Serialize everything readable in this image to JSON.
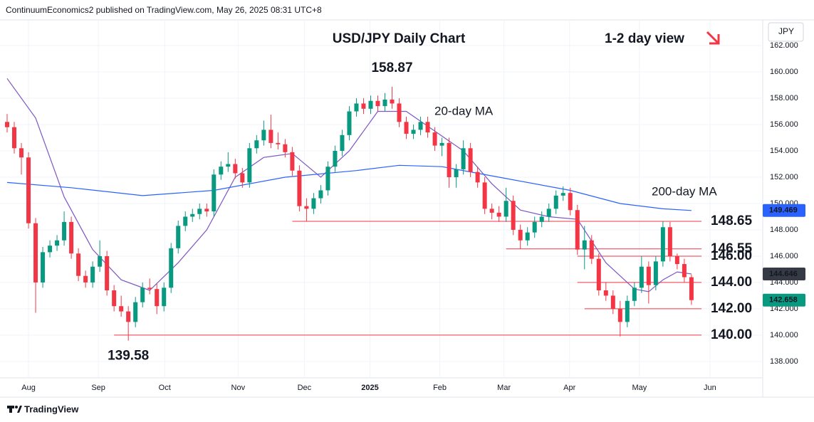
{
  "header": "ContinuumEconomics2 published on TradingView.com, May 26, 2025 08:31 UTC+8",
  "footer": "TradingView",
  "chart_data": {
    "type": "candlestick",
    "title": "USD/JPY Daily Chart",
    "subtitle": "1-2 day view",
    "currency": "JPY",
    "up_color": "#089981",
    "down_color": "#f23645",
    "grid": true,
    "xlim": [
      -1,
      106
    ],
    "xticks": [
      {
        "value": 3,
        "label": "Aug"
      },
      {
        "value": 12.8,
        "label": "Sep"
      },
      {
        "value": 22.1,
        "label": "Oct"
      },
      {
        "value": 32.4,
        "label": "Nov"
      },
      {
        "value": 41.7,
        "label": "Dec"
      },
      {
        "value": 50.9,
        "label": "2025"
      },
      {
        "value": 60.7,
        "label": "Feb"
      },
      {
        "value": 69.7,
        "label": "Mar"
      },
      {
        "value": 78.9,
        "label": "Apr"
      },
      {
        "value": 88.7,
        "label": "May"
      },
      {
        "value": 98.6,
        "label": "Jun"
      }
    ],
    "ylim": [
      136.75,
      163.95
    ],
    "yticks": [
      {
        "value": 138,
        "label": "138.000"
      },
      {
        "value": 140,
        "label": "140.000"
      },
      {
        "value": 142,
        "label": "142.000"
      },
      {
        "value": 144,
        "label": "144.000"
      },
      {
        "value": 146,
        "label": "146.000"
      },
      {
        "value": 148,
        "label": "148.000"
      },
      {
        "value": 150,
        "label": "150.000"
      },
      {
        "value": 152,
        "label": "152.000"
      },
      {
        "value": 154,
        "label": "154.000"
      },
      {
        "value": 156,
        "label": "156.000"
      },
      {
        "value": 158,
        "label": "158.000"
      },
      {
        "value": 160,
        "label": "160.000"
      },
      {
        "value": 162,
        "label": "162.000"
      }
    ],
    "ohlc": [
      [
        156.2,
        156.8,
        155.4,
        155.8
      ],
      [
        155.8,
        156.2,
        153.8,
        154.2
      ],
      [
        154.2,
        154.6,
        152.2,
        153.5
      ],
      [
        153.5,
        153.9,
        148.1,
        148.5
      ],
      [
        148.5,
        148.9,
        141.7,
        144.0
      ],
      [
        144.0,
        146.7,
        143.6,
        146.3
      ],
      [
        146.3,
        147.2,
        145.9,
        146.8
      ],
      [
        146.8,
        147.6,
        146.4,
        147.2
      ],
      [
        147.2,
        149.4,
        146.8,
        148.6
      ],
      [
        148.6,
        149.0,
        145.8,
        146.2
      ],
      [
        146.2,
        146.6,
        144.1,
        144.5
      ],
      [
        144.5,
        144.9,
        143.6,
        144.0
      ],
      [
        144.0,
        145.6,
        143.6,
        145.2
      ],
      [
        145.2,
        147.2,
        144.8,
        146.0
      ],
      [
        146.0,
        146.4,
        143.0,
        143.4
      ],
      [
        143.4,
        143.8,
        141.8,
        142.2
      ],
      [
        142.2,
        143.0,
        141.4,
        141.8
      ],
      [
        141.8,
        142.2,
        139.58,
        141.0
      ],
      [
        141.0,
        142.9,
        140.6,
        142.5
      ],
      [
        142.5,
        144.0,
        142.1,
        143.6
      ],
      [
        143.6,
        144.3,
        143.1,
        143.5
      ],
      [
        143.5,
        143.9,
        141.6,
        142.2
      ],
      [
        142.2,
        144.0,
        141.8,
        143.6
      ],
      [
        143.6,
        147.0,
        143.2,
        146.6
      ],
      [
        146.6,
        148.7,
        146.2,
        148.3
      ],
      [
        148.3,
        149.4,
        147.9,
        149.0
      ],
      [
        149.0,
        149.6,
        148.6,
        149.2
      ],
      [
        149.2,
        150.0,
        148.8,
        149.6
      ],
      [
        149.6,
        150.0,
        149.0,
        149.4
      ],
      [
        149.4,
        152.6,
        149.0,
        152.2
      ],
      [
        152.2,
        153.2,
        151.8,
        152.8
      ],
      [
        152.8,
        153.9,
        152.4,
        153.0
      ],
      [
        153.0,
        153.4,
        151.9,
        152.3
      ],
      [
        152.3,
        152.7,
        151.2,
        151.6
      ],
      [
        151.6,
        154.6,
        151.2,
        154.2
      ],
      [
        154.2,
        155.2,
        153.8,
        154.8
      ],
      [
        154.8,
        156.3,
        154.4,
        155.6
      ],
      [
        155.6,
        156.75,
        154.2,
        154.6
      ],
      [
        154.6,
        155.4,
        154.1,
        154.5
      ],
      [
        154.5,
        154.9,
        153.5,
        153.9
      ],
      [
        153.9,
        154.3,
        152.1,
        152.5
      ],
      [
        152.5,
        152.9,
        149.4,
        149.8
      ],
      [
        149.8,
        150.4,
        148.65,
        149.6
      ],
      [
        149.6,
        150.8,
        149.2,
        150.4
      ],
      [
        150.4,
        151.4,
        150.0,
        151.0
      ],
      [
        151.0,
        153.2,
        150.6,
        152.8
      ],
      [
        152.8,
        154.4,
        152.4,
        154.0
      ],
      [
        154.0,
        155.6,
        153.6,
        155.2
      ],
      [
        155.2,
        157.4,
        154.8,
        157.0
      ],
      [
        157.0,
        158.0,
        156.6,
        157.6
      ],
      [
        157.6,
        158.0,
        156.8,
        157.2
      ],
      [
        157.2,
        158.2,
        156.8,
        157.8
      ],
      [
        157.8,
        158.2,
        157.0,
        157.4
      ],
      [
        157.4,
        158.4,
        157.0,
        157.9
      ],
      [
        157.9,
        158.87,
        157.2,
        157.6
      ],
      [
        157.6,
        158.0,
        155.8,
        156.2
      ],
      [
        156.2,
        156.6,
        154.9,
        155.3
      ],
      [
        155.3,
        156.0,
        154.9,
        155.6
      ],
      [
        155.6,
        156.6,
        155.2,
        156.2
      ],
      [
        156.2,
        156.6,
        155.0,
        155.4
      ],
      [
        155.4,
        155.8,
        154.0,
        154.4
      ],
      [
        154.4,
        155.0,
        153.6,
        154.6
      ],
      [
        154.6,
        155.0,
        151.2,
        152.0
      ],
      [
        152.0,
        153.0,
        151.2,
        152.6
      ],
      [
        152.6,
        154.8,
        152.2,
        154.2
      ],
      [
        154.2,
        154.6,
        152.0,
        152.4
      ],
      [
        152.4,
        152.8,
        151.2,
        151.6
      ],
      [
        151.6,
        152.0,
        149.2,
        149.6
      ],
      [
        149.6,
        150.0,
        148.8,
        149.3
      ],
      [
        149.3,
        149.8,
        148.6,
        149.0
      ],
      [
        149.0,
        151.2,
        148.6,
        150.2
      ],
      [
        150.2,
        150.6,
        147.6,
        148.0
      ],
      [
        148.0,
        148.4,
        146.55,
        147.2
      ],
      [
        147.2,
        148.2,
        146.8,
        147.8
      ],
      [
        147.8,
        149.0,
        147.4,
        148.6
      ],
      [
        148.6,
        149.4,
        148.2,
        149.0
      ],
      [
        149.0,
        150.0,
        148.6,
        149.6
      ],
      [
        149.6,
        151.0,
        149.2,
        150.6
      ],
      [
        150.6,
        151.3,
        150.2,
        150.8
      ],
      [
        150.8,
        151.2,
        149.1,
        149.5
      ],
      [
        149.5,
        149.9,
        146.1,
        146.5
      ],
      [
        146.5,
        148.3,
        145.0,
        147.2
      ],
      [
        147.2,
        147.6,
        145.4,
        145.8
      ],
      [
        145.8,
        146.2,
        143.0,
        143.4
      ],
      [
        143.4,
        144.0,
        142.6,
        143.0
      ],
      [
        143.0,
        143.4,
        141.6,
        142.0
      ],
      [
        142.0,
        142.6,
        139.9,
        141.0
      ],
      [
        141.0,
        143.0,
        140.6,
        142.6
      ],
      [
        142.6,
        144.0,
        142.2,
        143.6
      ],
      [
        143.6,
        146.0,
        143.2,
        145.2
      ],
      [
        145.2,
        145.6,
        142.4,
        143.8
      ],
      [
        143.8,
        146.0,
        143.4,
        145.6
      ],
      [
        145.6,
        148.65,
        145.2,
        148.2
      ],
      [
        148.2,
        148.6,
        145.6,
        146.0
      ],
      [
        146.0,
        146.2,
        145.0,
        145.4
      ],
      [
        145.4,
        145.8,
        144.0,
        144.4
      ],
      [
        144.4,
        144.6,
        142.3,
        142.658
      ]
    ],
    "series": [
      {
        "name": "20-day MA",
        "color": "#7e57c2",
        "x": [
          0,
          4,
          8,
          12,
          16,
          20,
          24,
          28,
          32,
          36,
          40,
          44,
          48,
          52,
          56,
          60,
          64,
          68,
          72,
          76,
          80,
          84,
          88,
          90,
          92,
          94,
          96
        ],
        "values": [
          159.5,
          156.5,
          150.5,
          146.5,
          144.2,
          143.4,
          145.5,
          148.0,
          152.0,
          153.5,
          153.8,
          152.0,
          154.0,
          157.0,
          157.0,
          155.5,
          154.0,
          151.5,
          149.5,
          149.0,
          148.8,
          145.5,
          143.5,
          143.3,
          144.2,
          144.8,
          144.646
        ]
      },
      {
        "name": "200-day MA",
        "color": "#2962ff",
        "x": [
          0,
          9,
          19,
          29,
          39,
          49,
          55,
          61,
          69,
          79,
          86,
          92,
          96
        ],
        "values": [
          151.6,
          151.2,
          150.6,
          151.0,
          152.0,
          152.5,
          152.9,
          152.8,
          152.0,
          151.0,
          150.0,
          149.6,
          149.469
        ]
      }
    ],
    "level_color": "#f23645",
    "levels": [
      {
        "value": 148.65,
        "from": 40
      },
      {
        "value": 146.55,
        "from": 70
      },
      {
        "value": 146,
        "label": "146.00",
        "from": 80
      },
      {
        "value": 144,
        "label": "144.00",
        "from": 80
      },
      {
        "value": 142,
        "label": "142.00",
        "from": 81
      },
      {
        "value": 140,
        "label": "140.00",
        "from": 15
      }
    ]
  }
}
